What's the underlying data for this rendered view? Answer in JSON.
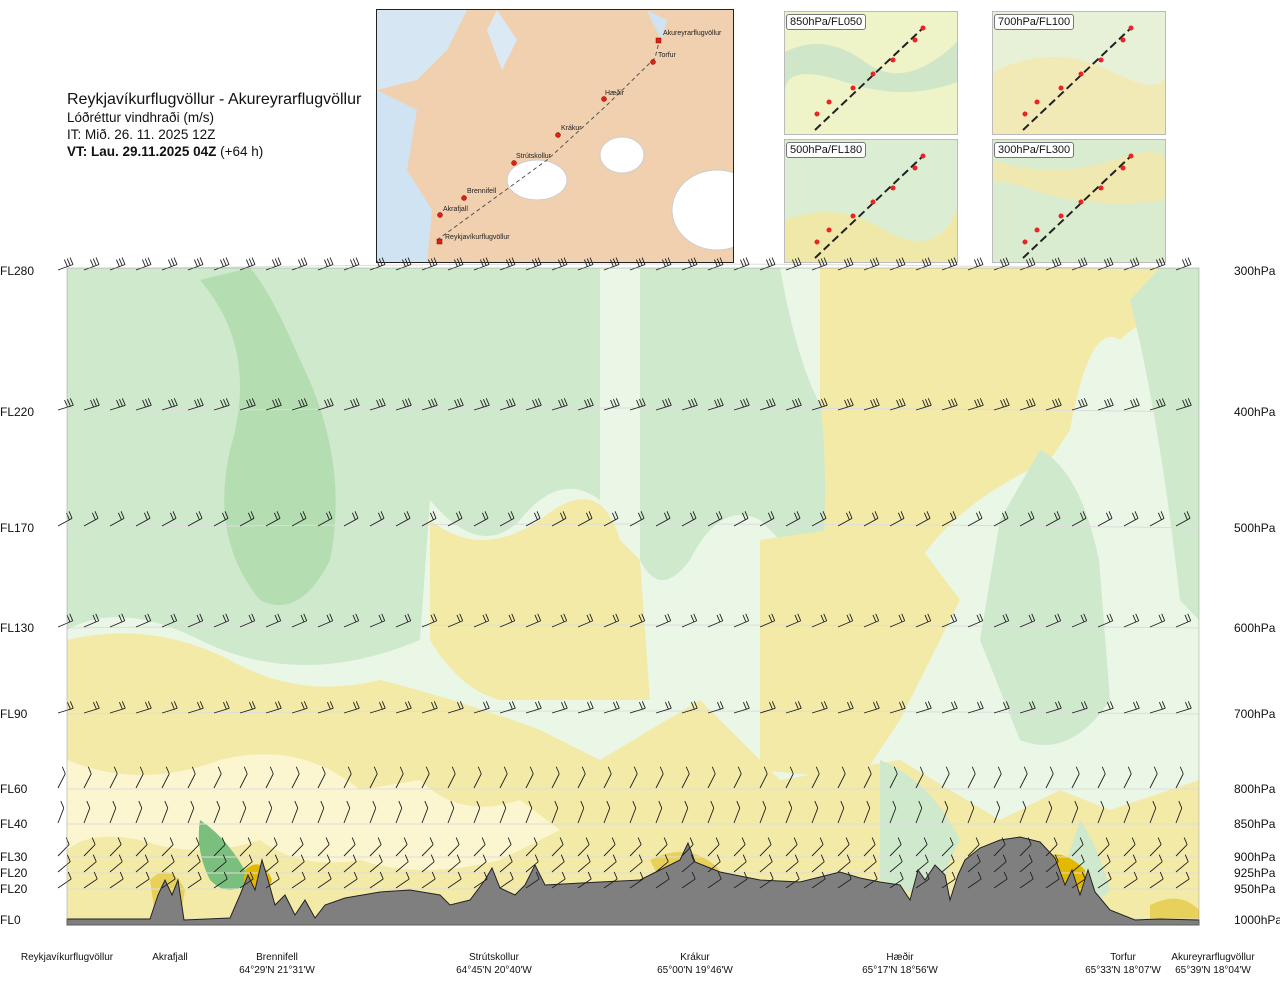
{
  "header": {
    "title": "Reykjavíkurflugvöllur - Akureyrarflugvöllur",
    "subtitle": "Lóðréttur vindhraði (m/s)",
    "issue_time": "IT: Mið. 26. 11. 2025 12Z",
    "valid_time_bold": "VT: Lau. 29.11.2025 04Z",
    "valid_time_lead": "(+64 h)"
  },
  "route_map": {
    "waypoints": [
      "Akureyrarflugvöllur",
      "Torfur",
      "Hæðir",
      "Krákur",
      "Strútskollur",
      "Brennifell",
      "Akrafjall",
      "Reykjavíkurflugvöllur"
    ]
  },
  "mini_maps": [
    {
      "label": "850hPa/FL050"
    },
    {
      "label": "700hPa/FL100"
    },
    {
      "label": "500hPa/FL180"
    },
    {
      "label": "300hPa/FL300"
    }
  ],
  "chart_data": {
    "type": "heatmap",
    "title": "Lóðréttur vindhraði (m/s)",
    "y_left_ticks": [
      "FL280",
      "FL220",
      "FL170",
      "FL130",
      "FL90",
      "FL60",
      "FL40",
      "FL30",
      "FL20",
      "FL20",
      "FL0"
    ],
    "y_right_ticks": [
      "300hPa",
      "400hPa",
      "500hPa",
      "600hPa",
      "700hPa",
      "800hPa",
      "850hPa",
      "900hPa",
      "925hPa",
      "950hPa",
      "1000hPa"
    ],
    "pressure_levels_hpa": [
      300,
      400,
      500,
      600,
      700,
      800,
      850,
      900,
      925,
      950,
      1000
    ],
    "x_waypoints": [
      {
        "name": "Reykjavíkurflugvöllur",
        "coord": ""
      },
      {
        "name": "Akrafjall",
        "coord": ""
      },
      {
        "name": "Brennifell",
        "coord": "64°29'N 21°31'W"
      },
      {
        "name": "Strútskollur",
        "coord": "64°45'N 20°40'W"
      },
      {
        "name": "Krákur",
        "coord": "65°00'N 19°46'W"
      },
      {
        "name": "Hæðir",
        "coord": "65°17'N 18°56'W"
      },
      {
        "name": "Torfur",
        "coord": "65°33'N 18°07'W"
      },
      {
        "name": "Akureyrarflugvöllur",
        "coord": "65°39'N 18°04'W"
      }
    ],
    "legend": "none",
    "grid": true,
    "colors": {
      "downdraft_strong": "#7bbf7e",
      "downdraft": "#a9d7a7",
      "downdraft_weak": "#cfe9cc",
      "neutral": "#eaf6e6",
      "updraft_weak": "#fbf6cf",
      "updraft": "#f3eaa7",
      "updraft_strong": "#e8d15a",
      "updraft_max": "#e3b800",
      "terrain": "#7f7f7f"
    }
  }
}
